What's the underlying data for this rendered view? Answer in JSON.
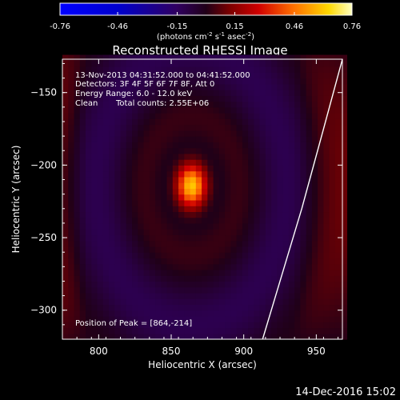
{
  "chart_data": {
    "type": "heatmap",
    "title": "Reconstructed RHESSI Image",
    "xlabel": "Heliocentric X (arcsec)",
    "ylabel": "Heliocentric Y (arcsec)",
    "xlim": [
      775,
      968
    ],
    "ylim": [
      -320,
      -127
    ],
    "x_ticks": [
      800,
      850,
      900,
      950
    ],
    "y_ticks": [
      -150,
      -200,
      -250,
      -300
    ],
    "colorbar": {
      "min": -0.76,
      "max": 0.76,
      "tick_labels": [
        "-0.76",
        "-0.46",
        "-0.15",
        "0.15",
        "0.46",
        "0.76"
      ],
      "unit_label": "(photons cm",
      "unit_sup1": "-2",
      "unit_mid1": " s",
      "unit_sup2": "-1",
      "unit_mid2": " asec",
      "unit_sup3": "-2",
      "unit_end": ")"
    },
    "peak": {
      "x": 864,
      "y": -214,
      "value": 0.76
    },
    "annotations": {
      "time_range": "13-Nov-2013 04:31:52.000 to 04:41:52.000",
      "detectors": "Detectors: 3F 4F 5F 6F 7F 8F, Att 0",
      "energy": "Energy Range: 6.0 - 12.0 keV",
      "method": "Clean",
      "counts": "Total counts: 2.55E+06",
      "peak_label": "Position of Peak = [864,-214]"
    },
    "limb_curve": [
      [
        968,
        -127
      ],
      [
        955,
        -175
      ],
      [
        940,
        -230
      ],
      [
        925,
        -280
      ],
      [
        913,
        -320
      ]
    ]
  },
  "footer": {
    "date": "14-Dec-2016 15:02"
  }
}
